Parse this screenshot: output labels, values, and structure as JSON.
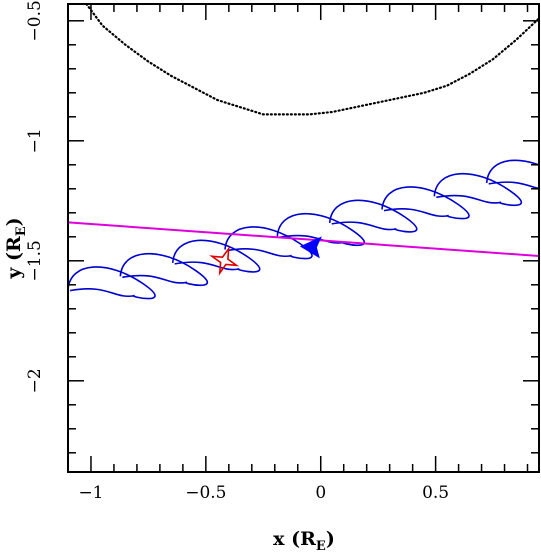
{
  "chart_data": {
    "type": "line",
    "title": "",
    "xlabel": "x (R",
    "xlabel_sub": "E",
    "xlabel_close": ")",
    "ylabel": "y (R",
    "ylabel_sub": "E",
    "ylabel_close": ")",
    "xlim": [
      -1.1,
      0.95
    ],
    "ylim": [
      -2.38,
      -0.43
    ],
    "xticks": [
      -1,
      -0.5,
      0,
      0.5
    ],
    "xtick_labels": [
      "−1",
      "−0.5",
      "0",
      "0.5"
    ],
    "yticks": [
      -0.5,
      -1,
      -1.5,
      -2
    ],
    "ytick_labels": [
      "−0.5",
      "−1",
      "−1.5",
      "−2"
    ],
    "grid": false,
    "legend": "none",
    "colors": {
      "gyration_orbit": "#0000d0",
      "reference_line": "#dd00dd",
      "boundary_dotted": "#000000",
      "star_marker": "#dd0000",
      "arrow_marker": "#0000ff"
    },
    "series": [
      {
        "style": "dotted",
        "x": [
          -1.02,
          -0.95,
          -0.85,
          -0.75,
          -0.65,
          -0.55,
          -0.45,
          -0.35,
          -0.25,
          -0.15,
          -0.05,
          0.05,
          0.15,
          0.25,
          0.35,
          0.45,
          0.55,
          0.65,
          0.75,
          0.85,
          0.95
        ],
        "y": [
          -0.43,
          -0.52,
          -0.6,
          -0.67,
          -0.73,
          -0.78,
          -0.83,
          -0.86,
          -0.89,
          -0.89,
          -0.89,
          -0.88,
          -0.86,
          -0.84,
          -0.82,
          -0.8,
          -0.77,
          -0.72,
          -0.66,
          -0.58,
          -0.49
        ]
      },
      {
        "style": "solid",
        "x": [
          -1.1,
          0.95
        ],
        "y": [
          -1.34,
          -1.48
        ]
      }
    ],
    "orbit": {
      "loops": 9,
      "start": {
        "x": -1.1,
        "y": -1.62
      },
      "end": {
        "x": 0.95,
        "y": -1.12
      },
      "loop_length": 0.29,
      "loop_height": 0.1
    },
    "markers": [
      {
        "shape": "star",
        "x": -0.42,
        "y": -1.5
      },
      {
        "shape": "arrow",
        "x": -0.03,
        "y": -1.44
      }
    ]
  }
}
